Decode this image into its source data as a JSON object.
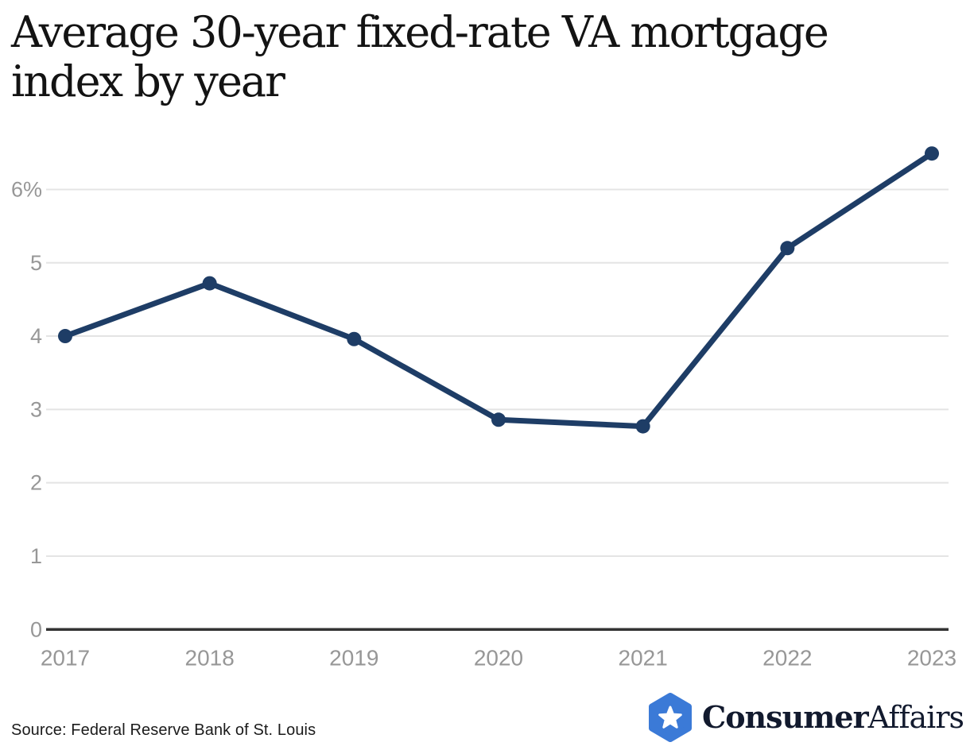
{
  "header": {
    "title_line1": "Average 30-year fixed-rate VA mortgage",
    "title_line2": "index by year"
  },
  "chart_data": {
    "type": "line",
    "title": "Average 30-year fixed-rate VA mortgage index by year",
    "x": [
      "2017",
      "2018",
      "2019",
      "2020",
      "2021",
      "2022",
      "2023"
    ],
    "series": [
      {
        "name": "Average 30-year fixed-rate VA mortgage index (%)",
        "values": [
          4.0,
          4.72,
          3.96,
          2.86,
          2.77,
          5.2,
          6.49
        ]
      }
    ],
    "ylim": [
      0,
      6.6
    ],
    "yticks": [
      0,
      1,
      2,
      3,
      4,
      5,
      6
    ],
    "ytick_labels": [
      "0",
      "1",
      "2",
      "3",
      "4",
      "5",
      "6%"
    ],
    "xlabel": "",
    "ylabel": "",
    "grid": "horizontal-only",
    "legend": "none",
    "colors": {
      "line": "#1e3d66",
      "point": "#1e3d66",
      "gridline": "#e4e4e4",
      "axis": "#333333",
      "tick_label": "#979797",
      "title": "#131313"
    }
  },
  "footer": {
    "source": "Source: Federal Reserve Bank of St. Louis",
    "logo": {
      "brand_bold": "Consumer",
      "brand_regular": "Affairs",
      "hexagon_color": "#3b7ad7",
      "star_color": "#ffffff",
      "icon": "hexagon-star-icon"
    }
  }
}
